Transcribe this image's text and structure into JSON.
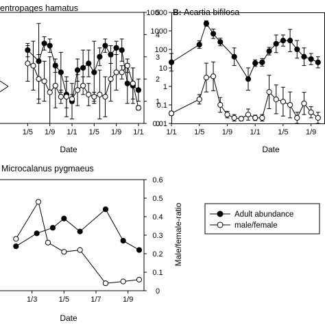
{
  "colors": {
    "axis": "#000000",
    "adult_marker": "#000000",
    "ratio_marker": "#ffffff",
    "error_bar": "#000000"
  },
  "legend": {
    "adult_label": "Adult abundance",
    "ratio_label": "male/female",
    "adult_marker": "filled-circle",
    "ratio_marker": "open-circle"
  },
  "chart_data": [
    {
      "panel": "A",
      "type": "line",
      "title": "entropages hamatus",
      "xlabel": "Date",
      "ylabel": "",
      "x_tick_labels": [
        "1/5",
        "1/9",
        "1/1",
        "1/5",
        "1/9",
        "1/1"
      ],
      "x_tick_index": [
        4,
        8,
        12,
        16,
        20,
        24
      ],
      "x_range": [
        -1,
        25
      ],
      "y_right_ticks": [
        "0",
        "1",
        "2",
        "3",
        "4",
        "5"
      ],
      "y_right_range": [
        0,
        5
      ],
      "series": [
        {
          "name": "Adult abundance",
          "marker": "filled",
          "x": [
            4,
            6,
            7,
            8,
            9,
            10,
            11,
            12,
            13,
            14,
            15,
            16,
            17,
            18,
            19,
            20,
            21,
            22,
            23,
            24
          ],
          "y": [
            3.3,
            2.8,
            3.6,
            3.5,
            2.6,
            2.3,
            1.3,
            1.0,
            2.4,
            2.5,
            2.7,
            2.3,
            3.0,
            3.5,
            3.1,
            3.4,
            3.3,
            1.8,
            1.7,
            1.5
          ],
          "err": [
            0.3,
            1.7,
            0.3,
            0.3,
            0.3,
            0.9,
            0.6,
            0.8,
            0.5,
            0.8,
            0.6,
            1.4,
            0.4,
            0.3,
            0.4,
            0.3,
            0.5,
            0.9,
            0.8,
            0.5
          ]
        },
        {
          "name": "male/female",
          "marker": "open",
          "x": [
            4,
            5,
            6,
            7,
            8,
            9,
            10,
            11,
            12,
            13,
            14,
            15,
            16,
            17,
            18,
            19,
            20,
            21,
            22,
            23,
            24
          ],
          "y": [
            2.7,
            2.6,
            2.0,
            1.9,
            1.4,
            1.7,
            1.2,
            1.2,
            1.1,
            1.5,
            1.7,
            1.3,
            1.2,
            1.3,
            1.2,
            2.0,
            2.3,
            2.3,
            2.6,
            1.8,
            0.7
          ],
          "err": [
            0.8,
            1.1,
            1.1,
            0.9,
            1.6,
            1.0,
            0.3,
            0.9,
            0.2,
            0.7,
            0.4,
            0.5,
            0.2,
            1.1,
            0.9,
            1.0,
            0.8,
            0.3,
            0.3,
            0.7,
            0.1
          ]
        }
      ]
    },
    {
      "panel": "B",
      "type": "line",
      "title": "Acartia bifilosa",
      "xlabel": "Date",
      "ylabel": "",
      "x_tick_labels": [
        "1/1",
        "1/5",
        "1/9",
        "1/1",
        "1/5",
        "1/9"
      ],
      "x_tick_index": [
        0,
        4,
        8,
        12,
        16,
        20
      ],
      "x_range": [
        0,
        22
      ],
      "y_scale": "log",
      "y_range": [
        0.01,
        10000
      ],
      "y_ticks": [
        "0.01",
        "0.1",
        "1",
        "10",
        "100",
        "1000",
        "10000"
      ],
      "series": [
        {
          "name": "Adult abundance",
          "marker": "filled",
          "x": [
            0,
            4,
            5,
            6,
            7,
            9,
            11,
            12,
            13,
            14,
            15,
            16,
            17,
            18,
            19,
            20,
            21
          ],
          "y": [
            20,
            180,
            2500,
            700,
            250,
            40,
            2.5,
            18,
            20,
            80,
            200,
            300,
            300,
            100,
            40,
            30,
            20
          ],
          "err_factor": [
            3,
            1.6,
            1.4,
            1.8,
            1.6,
            3,
            4,
            1.5,
            1.6,
            1.6,
            3,
            2,
            4,
            3,
            3,
            2,
            2
          ]
        },
        {
          "name": "male/female",
          "marker": "open",
          "x": [
            0,
            4,
            5,
            6,
            7,
            8,
            9,
            10,
            11,
            12,
            13,
            14,
            15,
            16,
            17,
            18,
            19,
            20,
            21
          ],
          "y": [
            0.035,
            0.2,
            3,
            3.5,
            0.1,
            0.03,
            0.02,
            0.018,
            0.03,
            0.02,
            0.02,
            0.5,
            0.2,
            0.15,
            0.1,
            0.02,
            0.12,
            0.04,
            0.02
          ],
          "err_factor": [
            1.3,
            1.8,
            6,
            6,
            2.5,
            1.5,
            1.5,
            1.3,
            2,
            1.4,
            1.5,
            8,
            6,
            6,
            5,
            2,
            4,
            2,
            2
          ]
        }
      ]
    },
    {
      "panel": "C",
      "type": "line",
      "title": "Microcalanus pygmaeus",
      "xlabel": "Date",
      "ylabel": "Male/female-ratio",
      "x_tick_labels": [
        "1/3",
        "1/5",
        "1/7",
        "1/9"
      ],
      "x_tick_index": [
        2,
        4,
        6,
        8
      ],
      "x_range": [
        0,
        9
      ],
      "y_right_ticks": [
        "0",
        "0.1",
        "0.2",
        "0.3",
        "0.4",
        "0.5",
        "0.6"
      ],
      "y_right_range": [
        0,
        0.6
      ],
      "series": [
        {
          "name": "Adult abundance",
          "marker": "filled",
          "x": [
            1.0,
            2.3,
            3.3,
            4.0,
            5.0,
            6.6,
            7.7,
            8.7
          ],
          "y": [
            0.24,
            0.31,
            0.34,
            0.39,
            0.32,
            0.44,
            0.27,
            0.22
          ]
        },
        {
          "name": "male/female",
          "marker": "open",
          "x": [
            1.0,
            2.4,
            3.0,
            4.0,
            5.0,
            6.6,
            7.7,
            8.7
          ],
          "y": [
            0.28,
            0.48,
            0.26,
            0.21,
            0.22,
            0.04,
            0.05,
            0.06
          ]
        }
      ]
    }
  ]
}
